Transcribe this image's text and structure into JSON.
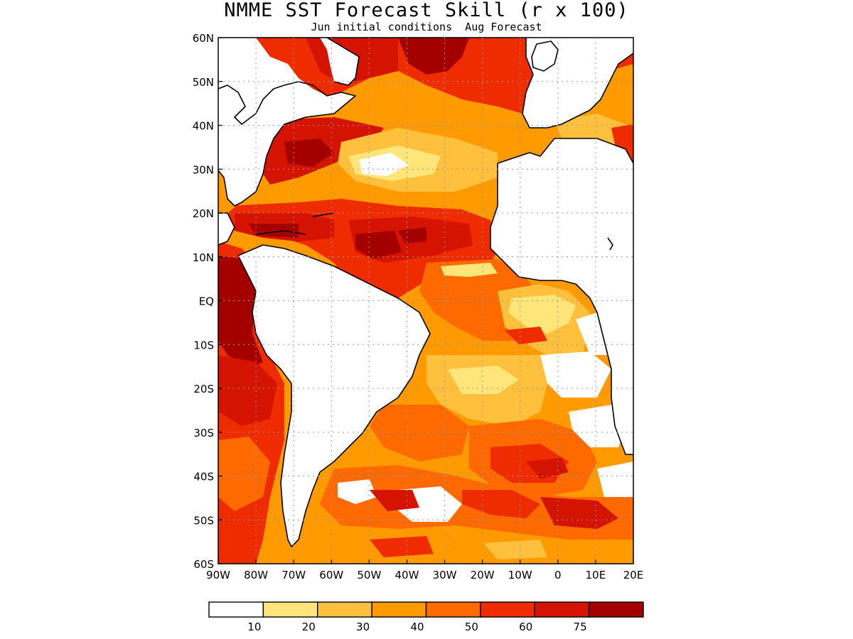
{
  "title": "NMME SST Forecast Skill (r x 100)",
  "subtitle": "Jun initial conditions  Aug Forecast",
  "axes": {
    "lon_labels": [
      "90W",
      "80W",
      "70W",
      "60W",
      "50W",
      "40W",
      "30W",
      "20W",
      "10W",
      "0",
      "10E",
      "20E"
    ],
    "lat_labels": [
      "60N",
      "50N",
      "40N",
      "30N",
      "20N",
      "10N",
      "EQ",
      "10S",
      "20S",
      "30S",
      "40S",
      "50S",
      "60S"
    ]
  },
  "colorbar": {
    "colors": [
      "#ffffff",
      "#ffe57a",
      "#ffc13d",
      "#ff9a00",
      "#ff6a00",
      "#ee2c00",
      "#d41300",
      "#a50000"
    ],
    "labels": [
      "10",
      "20",
      "30",
      "40",
      "50",
      "60",
      "75"
    ]
  }
}
